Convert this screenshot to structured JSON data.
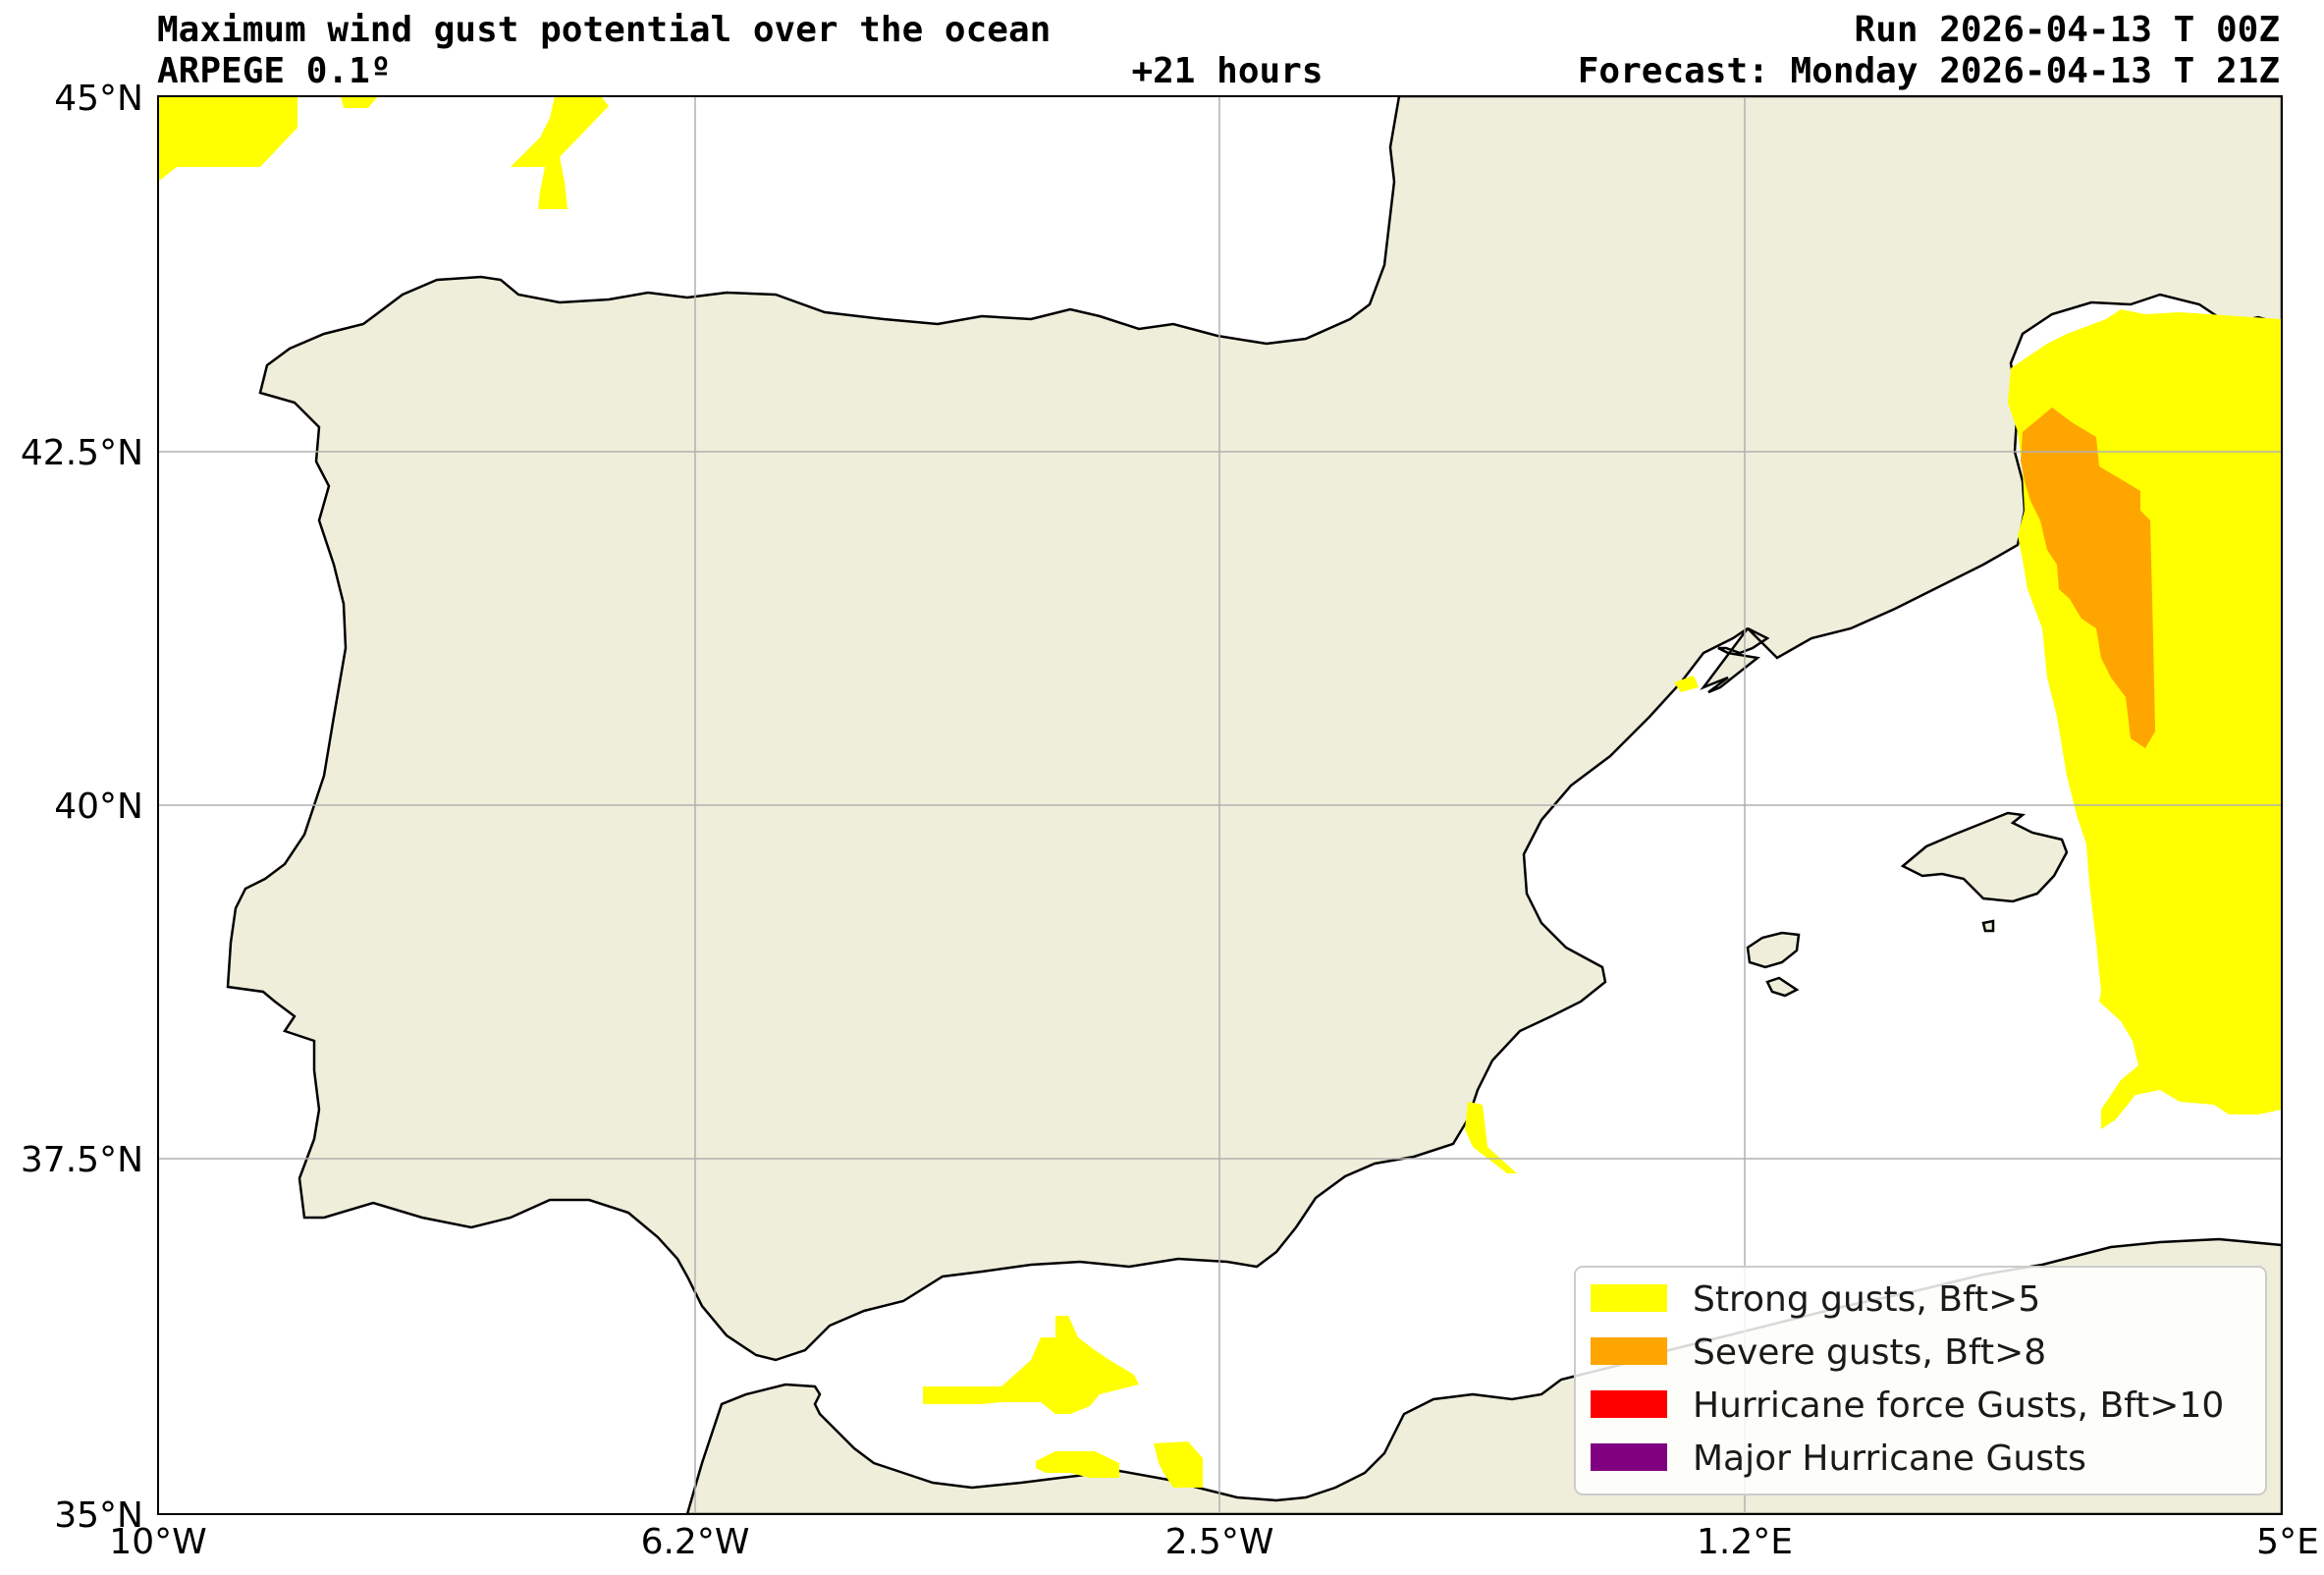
{
  "header": {
    "title": "Maximum wind gust potential over the ocean",
    "model": "ARPEGE 0.1º",
    "lead_time": "+21 hours",
    "run": "Run 2026-04-13 T 00Z",
    "forecast": "Forecast: Monday 2026-04-13 T 21Z"
  },
  "map": {
    "extent": {
      "lon_min": -10,
      "lon_max": 5,
      "lat_min": 35,
      "lat_max": 45
    },
    "land_color": "#efeedb",
    "sea_color": "#ffffff",
    "grid": true,
    "lon_ticks": [
      {
        "value": -10,
        "label": "10°W"
      },
      {
        "value": -6.25,
        "label": "6.2°W"
      },
      {
        "value": -2.5,
        "label": "2.5°W"
      },
      {
        "value": 1.25,
        "label": "1.2°E"
      },
      {
        "value": 5,
        "label": "5°E"
      }
    ],
    "lat_ticks": [
      {
        "value": 45,
        "label": "45°N"
      },
      {
        "value": 42.5,
        "label": "42.5°N"
      },
      {
        "value": 40,
        "label": "40°N"
      },
      {
        "value": 37.5,
        "label": "37.5°N"
      },
      {
        "value": 35,
        "label": "35°N"
      }
    ]
  },
  "legend": {
    "placement": "lower-right",
    "items": [
      {
        "label": "Strong gusts, Bft>5",
        "color": "#ffff00"
      },
      {
        "label": "Severe gusts, Bft>8",
        "color": "#ffa500"
      },
      {
        "label": "Hurricane force Gusts, Bft>10",
        "color": "#ff0000"
      },
      {
        "label": "Major Hurricane Gusts",
        "color": "#800080"
      }
    ]
  }
}
